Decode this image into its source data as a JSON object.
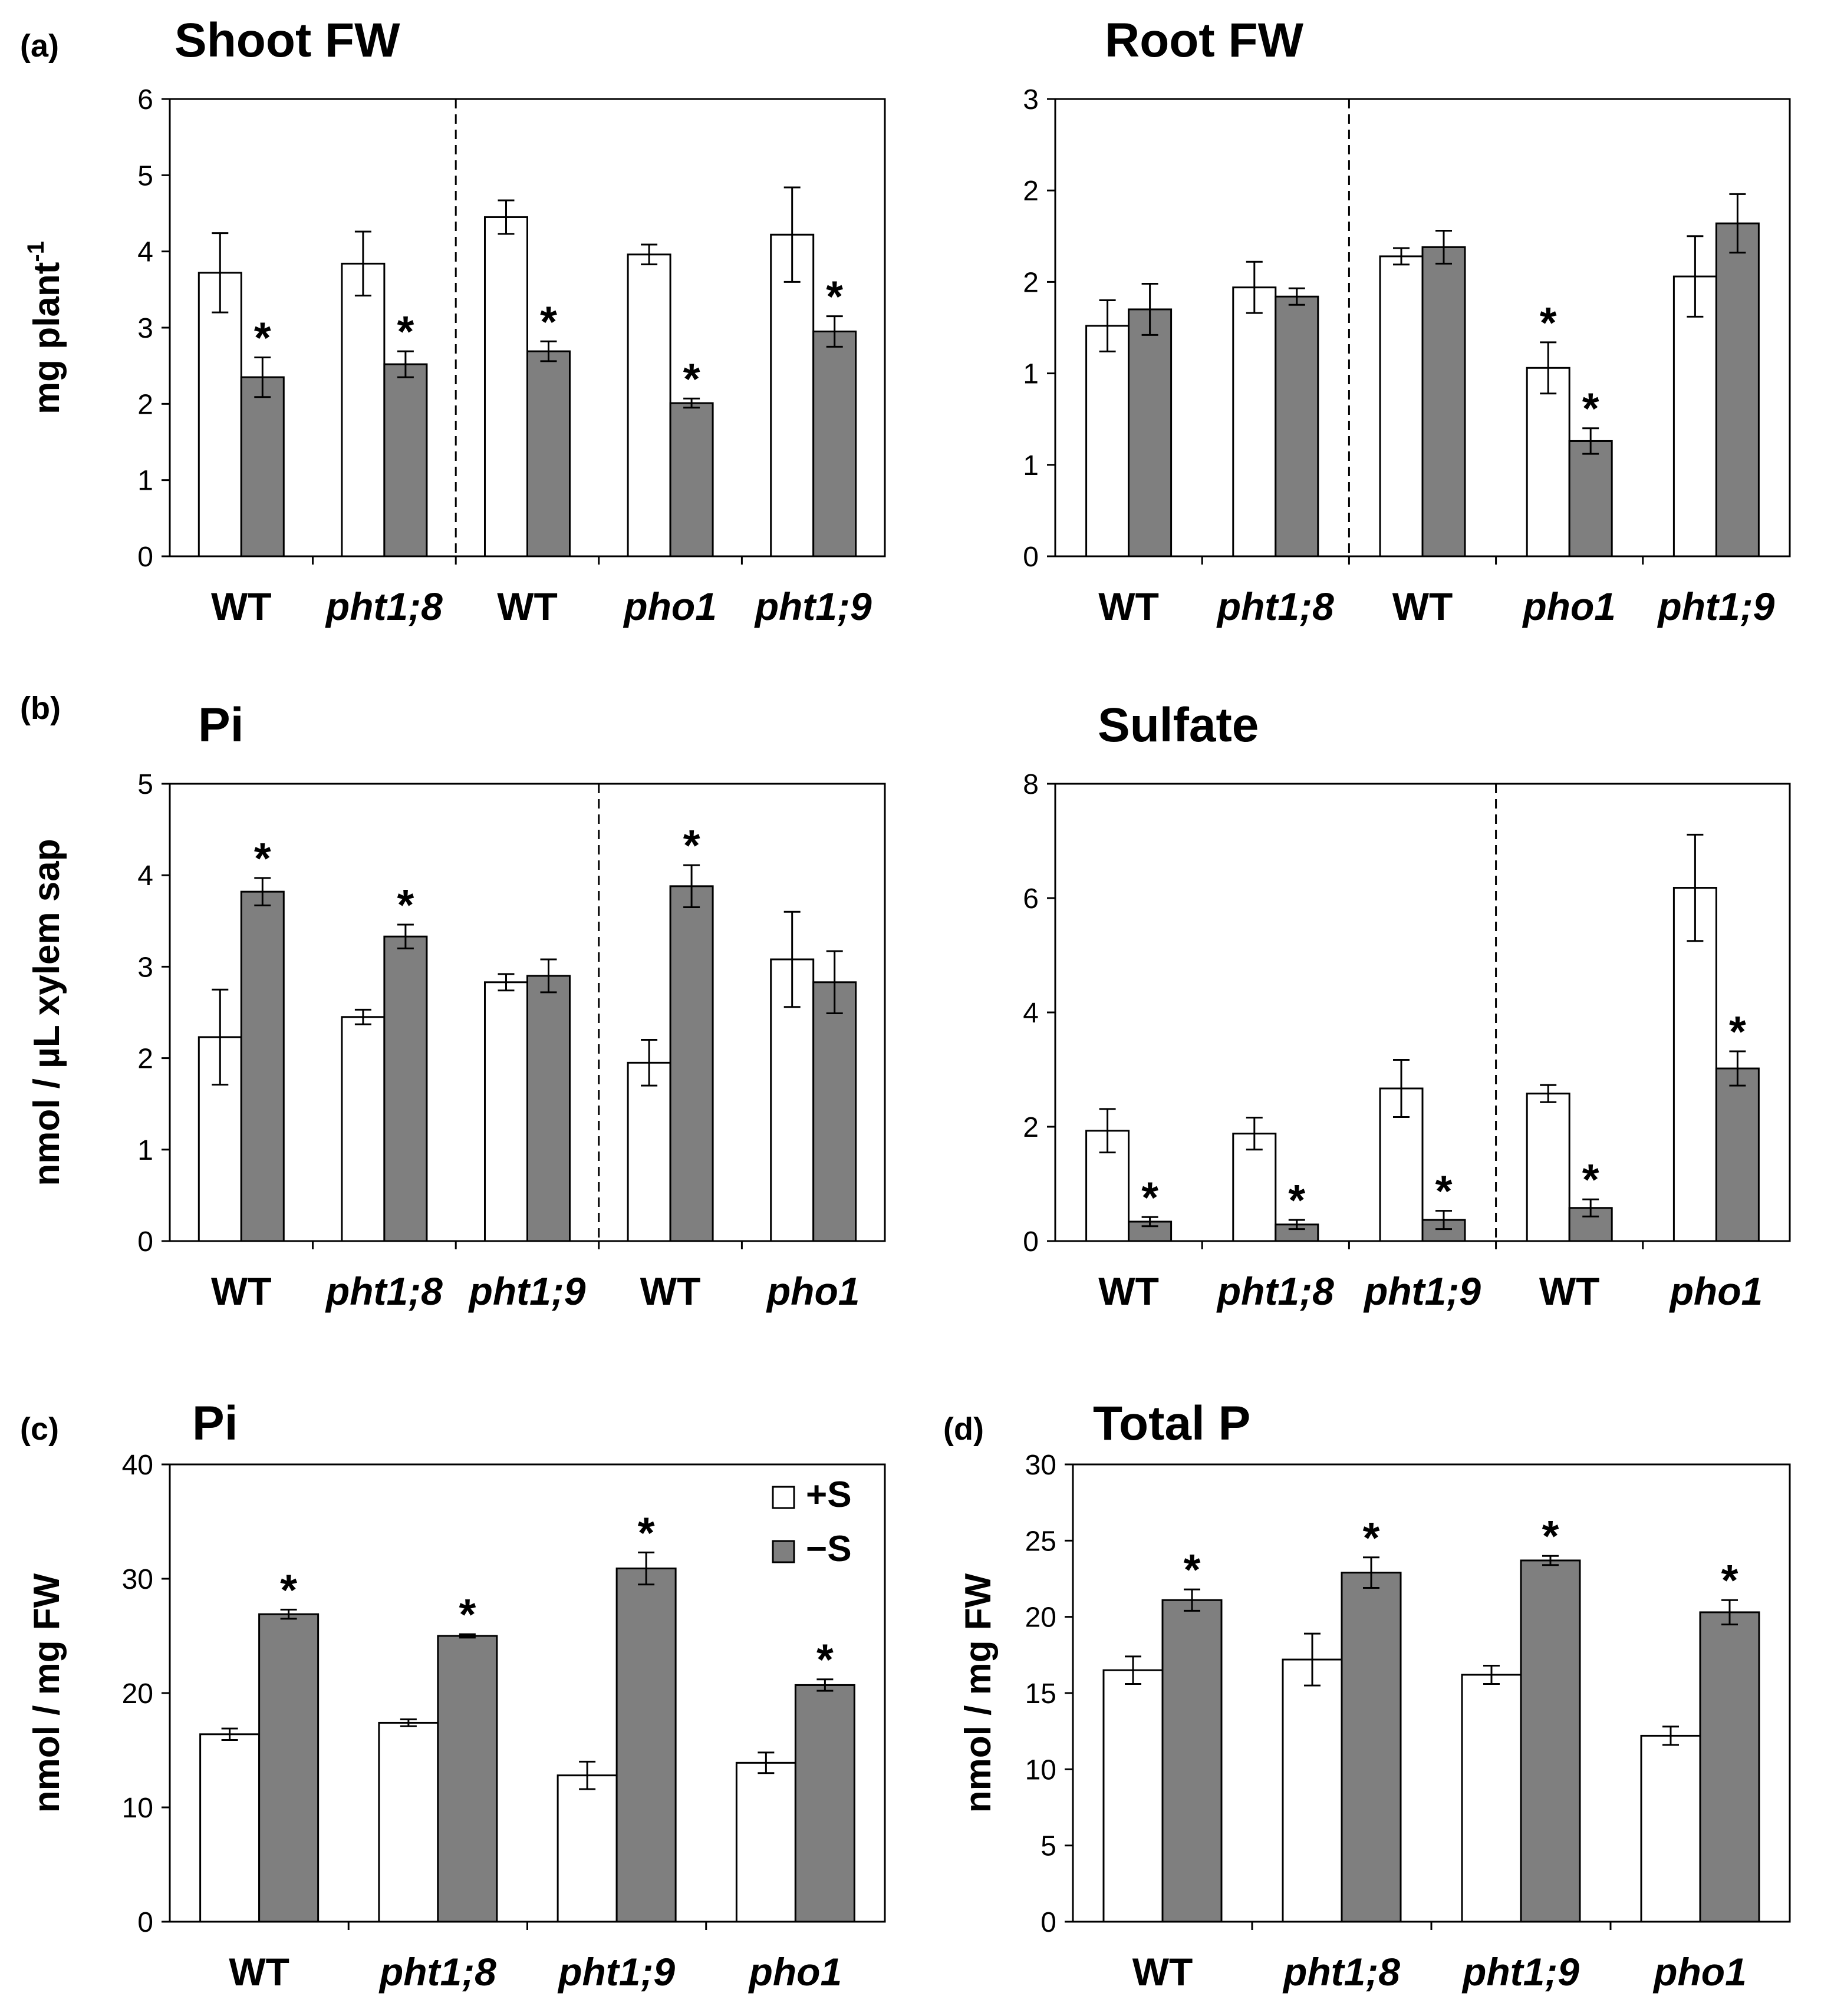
{
  "colors": {
    "plus_s": "#ffffff",
    "minus_s": "#7f7f7f",
    "stroke": "#000000"
  },
  "legend": [
    {
      "label": "+S",
      "color": "#ffffff"
    },
    {
      "label": "−S",
      "color": "#7f7f7f"
    }
  ],
  "chart_data": [
    {
      "id": "shoot-fw",
      "panel_letter": "(a)",
      "type": "bar",
      "title": "Shoot FW",
      "ylabel": "mg plant",
      "ylabel_sup": "-1",
      "ylim": [
        0,
        6
      ],
      "yticks": [
        "0",
        "1",
        "2",
        "3",
        "4",
        "5",
        "6"
      ],
      "categories": [
        {
          "label": "WT",
          "italic": false
        },
        {
          "label": "pht1;8",
          "italic": true
        },
        {
          "label": "WT",
          "italic": false
        },
        {
          "label": "pho1",
          "italic": true
        },
        {
          "label": "pht1;9",
          "italic": true
        }
      ],
      "divider_after": 2,
      "series": [
        {
          "name": "+S",
          "values": [
            3.72,
            3.84,
            4.45,
            3.96,
            4.22
          ],
          "errors": [
            0.52,
            0.42,
            0.22,
            0.13,
            0.62
          ],
          "sig": [
            false,
            false,
            false,
            false,
            false
          ]
        },
        {
          "name": "−S",
          "values": [
            2.35,
            2.52,
            2.69,
            2.01,
            2.95
          ],
          "errors": [
            0.26,
            0.17,
            0.13,
            0.06,
            0.2
          ],
          "sig": [
            true,
            true,
            true,
            true,
            true
          ]
        }
      ]
    },
    {
      "id": "root-fw",
      "panel_letter": "",
      "type": "bar",
      "title": "Root FW",
      "ylabel": "",
      "ylim": [
        0,
        2.5
      ],
      "yticks": [
        "0",
        "1",
        "1",
        "2",
        "2",
        "3"
      ],
      "categories": [
        {
          "label": "WT",
          "italic": false
        },
        {
          "label": "pht1;8",
          "italic": true
        },
        {
          "label": "WT",
          "italic": false
        },
        {
          "label": "pho1",
          "italic": true
        },
        {
          "label": "pht1;9",
          "italic": true
        }
      ],
      "divider_after": 2,
      "series": [
        {
          "name": "+S",
          "values": [
            1.26,
            1.47,
            1.64,
            1.03,
            1.53
          ],
          "errors": [
            0.14,
            0.14,
            0.045,
            0.14,
            0.22
          ],
          "sig": [
            false,
            false,
            false,
            true,
            false
          ]
        },
        {
          "name": "−S",
          "values": [
            1.35,
            1.42,
            1.69,
            0.63,
            1.82
          ],
          "errors": [
            0.14,
            0.045,
            0.09,
            0.07,
            0.16
          ],
          "sig": [
            false,
            false,
            false,
            true,
            false
          ]
        }
      ]
    },
    {
      "id": "xylem-pi",
      "panel_letter": "(b)",
      "type": "bar",
      "title": "Pi",
      "ylabel": "nmol / µL xylem sap",
      "ylim": [
        0,
        5
      ],
      "yticks": [
        "0",
        "1",
        "2",
        "3",
        "4",
        "5"
      ],
      "categories": [
        {
          "label": "WT",
          "italic": false
        },
        {
          "label": "pht1;8",
          "italic": true
        },
        {
          "label": "pht1;9",
          "italic": true
        },
        {
          "label": "WT",
          "italic": false
        },
        {
          "label": "pho1",
          "italic": true
        }
      ],
      "divider_after": 3,
      "series": [
        {
          "name": "+S",
          "values": [
            2.23,
            2.45,
            2.83,
            1.95,
            3.08
          ],
          "errors": [
            0.52,
            0.08,
            0.09,
            0.25,
            0.52
          ],
          "sig": [
            false,
            false,
            false,
            false,
            false
          ]
        },
        {
          "name": "−S",
          "values": [
            3.82,
            3.33,
            2.9,
            3.88,
            2.83
          ],
          "errors": [
            0.15,
            0.13,
            0.18,
            0.23,
            0.34
          ],
          "sig": [
            true,
            true,
            false,
            true,
            false
          ]
        }
      ]
    },
    {
      "id": "xylem-sulfate",
      "panel_letter": "",
      "type": "bar",
      "title": "Sulfate",
      "ylabel": "",
      "ylim": [
        0,
        8
      ],
      "yticks": [
        "0",
        "2",
        "4",
        "6",
        "8"
      ],
      "categories": [
        {
          "label": "WT",
          "italic": false
        },
        {
          "label": "pht1;8",
          "italic": true
        },
        {
          "label": "pht1;9",
          "italic": true
        },
        {
          "label": "WT",
          "italic": false
        },
        {
          "label": "pho1",
          "italic": true
        }
      ],
      "divider_after": 3,
      "series": [
        {
          "name": "+S",
          "values": [
            1.93,
            1.88,
            2.67,
            2.58,
            6.18
          ],
          "errors": [
            0.38,
            0.28,
            0.5,
            0.15,
            0.93
          ],
          "sig": [
            false,
            false,
            false,
            false,
            false
          ]
        },
        {
          "name": "−S",
          "values": [
            0.34,
            0.29,
            0.37,
            0.58,
            3.02
          ],
          "errors": [
            0.08,
            0.08,
            0.16,
            0.15,
            0.3
          ],
          "sig": [
            true,
            true,
            true,
            true,
            true
          ]
        }
      ]
    },
    {
      "id": "shoot-pi",
      "panel_letter": "(c)",
      "type": "bar",
      "title": "Pi",
      "ylabel": "nmol / mg FW",
      "ylim": [
        0,
        40
      ],
      "yticks": [
        "0",
        "10",
        "20",
        "30",
        "40"
      ],
      "categories": [
        {
          "label": "WT",
          "italic": false
        },
        {
          "label": "pht1;8",
          "italic": true
        },
        {
          "label": "pht1;9",
          "italic": true
        },
        {
          "label": "pho1",
          "italic": true
        }
      ],
      "divider_after": null,
      "show_legend": true,
      "series": [
        {
          "name": "+S",
          "values": [
            16.4,
            17.4,
            12.8,
            13.9
          ],
          "errors": [
            0.5,
            0.3,
            1.2,
            0.9
          ],
          "sig": [
            false,
            false,
            false,
            false
          ]
        },
        {
          "name": "−S",
          "values": [
            26.9,
            25.0,
            30.9,
            20.7
          ],
          "errors": [
            0.4,
            0.15,
            1.4,
            0.5
          ],
          "sig": [
            true,
            true,
            true,
            true
          ]
        }
      ]
    },
    {
      "id": "shoot-total-p",
      "panel_letter": "(d)",
      "type": "bar",
      "title": "Total P",
      "ylabel": "nmol / mg FW",
      "ylim": [
        0,
        30
      ],
      "yticks": [
        "0",
        "5",
        "10",
        "15",
        "20",
        "25",
        "30"
      ],
      "categories": [
        {
          "label": "WT",
          "italic": false
        },
        {
          "label": "pht1;8",
          "italic": true
        },
        {
          "label": "pht1;9",
          "italic": true
        },
        {
          "label": "pho1",
          "italic": true
        }
      ],
      "divider_after": null,
      "series": [
        {
          "name": "+S",
          "values": [
            16.5,
            17.2,
            16.2,
            12.2
          ],
          "errors": [
            0.9,
            1.7,
            0.6,
            0.6
          ],
          "sig": [
            false,
            false,
            false,
            false
          ]
        },
        {
          "name": "−S",
          "values": [
            21.1,
            22.9,
            23.7,
            20.3
          ],
          "errors": [
            0.7,
            1.0,
            0.3,
            0.8
          ],
          "sig": [
            true,
            true,
            true,
            true
          ]
        }
      ]
    }
  ]
}
